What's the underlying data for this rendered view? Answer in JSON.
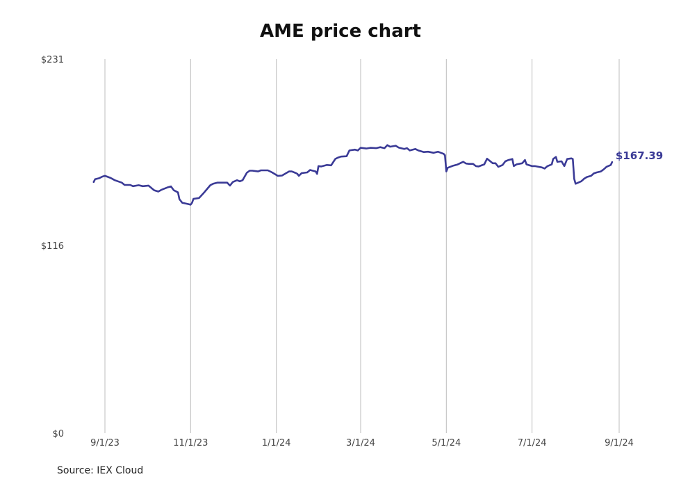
{
  "chart_data": {
    "type": "line",
    "title": "AME price chart",
    "source": "Source: IEX Cloud",
    "ylim": [
      0,
      231
    ],
    "y_ticks": [
      {
        "value": 0,
        "label": "$0"
      },
      {
        "value": 116,
        "label": "$116"
      },
      {
        "value": 231,
        "label": "$231"
      }
    ],
    "x_range": [
      "2023-08-24",
      "2024-09-01"
    ],
    "x_ticks": [
      {
        "date": "2023-09-01",
        "label": "9/1/23"
      },
      {
        "date": "2023-11-01",
        "label": "11/1/23"
      },
      {
        "date": "2024-01-01",
        "label": "1/1/24"
      },
      {
        "date": "2024-03-01",
        "label": "3/1/24"
      },
      {
        "date": "2024-05-01",
        "label": "5/1/24"
      },
      {
        "date": "2024-07-01",
        "label": "7/1/24"
      },
      {
        "date": "2024-09-01",
        "label": "9/1/24"
      }
    ],
    "grid": {
      "vertical": true,
      "horizontal": false
    },
    "series": [
      {
        "color": "#3a3a96",
        "last_value_label": "$167.39",
        "points": [
          [
            "2023-08-24",
            155.1
          ],
          [
            "2023-08-25",
            156.8
          ],
          [
            "2023-08-28",
            157.5
          ],
          [
            "2023-08-30",
            158.4
          ],
          [
            "2023-09-01",
            158.9
          ],
          [
            "2023-09-05",
            157.6
          ],
          [
            "2023-09-08",
            156.2
          ],
          [
            "2023-09-11",
            155.3
          ],
          [
            "2023-09-13",
            154.7
          ],
          [
            "2023-09-15",
            153.3
          ],
          [
            "2023-09-19",
            153.3
          ],
          [
            "2023-09-21",
            152.5
          ],
          [
            "2023-09-25",
            153.1
          ],
          [
            "2023-09-28",
            152.5
          ],
          [
            "2023-10-02",
            152.9
          ],
          [
            "2023-10-04",
            151.5
          ],
          [
            "2023-10-06",
            150.0
          ],
          [
            "2023-10-09",
            149.2
          ],
          [
            "2023-10-11",
            150.2
          ],
          [
            "2023-10-13",
            150.9
          ],
          [
            "2023-10-16",
            151.9
          ],
          [
            "2023-10-18",
            152.4
          ],
          [
            "2023-10-20",
            150.0
          ],
          [
            "2023-10-23",
            148.7
          ],
          [
            "2023-10-24",
            144.5
          ],
          [
            "2023-10-26",
            142.3
          ],
          [
            "2023-10-30",
            141.5
          ],
          [
            "2023-11-01",
            141.1
          ],
          [
            "2023-11-02",
            142.3
          ],
          [
            "2023-11-03",
            144.7
          ],
          [
            "2023-11-07",
            145.2
          ],
          [
            "2023-11-10",
            148.0
          ],
          [
            "2023-11-13",
            151.1
          ],
          [
            "2023-11-15",
            153.1
          ],
          [
            "2023-11-17",
            154.0
          ],
          [
            "2023-11-20",
            154.7
          ],
          [
            "2023-11-23",
            154.7
          ],
          [
            "2023-11-27",
            154.7
          ],
          [
            "2023-11-29",
            152.9
          ],
          [
            "2023-12-01",
            155.1
          ],
          [
            "2023-12-04",
            156.2
          ],
          [
            "2023-12-06",
            155.5
          ],
          [
            "2023-12-08",
            156.2
          ],
          [
            "2023-12-11",
            160.8
          ],
          [
            "2023-12-13",
            162.1
          ],
          [
            "2023-12-15",
            162.1
          ],
          [
            "2023-12-19",
            161.6
          ],
          [
            "2023-12-21",
            162.3
          ],
          [
            "2023-12-26",
            162.3
          ],
          [
            "2023-12-29",
            161.0
          ],
          [
            "2024-01-02",
            158.9
          ],
          [
            "2024-01-05",
            159.1
          ],
          [
            "2024-01-08",
            160.6
          ],
          [
            "2024-01-10",
            161.6
          ],
          [
            "2024-01-12",
            161.6
          ],
          [
            "2024-01-15",
            160.6
          ],
          [
            "2024-01-16",
            160.1
          ],
          [
            "2024-01-17",
            158.9
          ],
          [
            "2024-01-19",
            160.6
          ],
          [
            "2024-01-23",
            161.0
          ],
          [
            "2024-01-25",
            162.5
          ],
          [
            "2024-01-29",
            161.6
          ],
          [
            "2024-01-30",
            160.1
          ],
          [
            "2024-01-31",
            164.9
          ],
          [
            "2024-02-02",
            164.7
          ],
          [
            "2024-02-06",
            165.6
          ],
          [
            "2024-02-09",
            165.4
          ],
          [
            "2024-02-12",
            169.4
          ],
          [
            "2024-02-14",
            170.2
          ],
          [
            "2024-02-16",
            170.8
          ],
          [
            "2024-02-20",
            171.0
          ],
          [
            "2024-02-22",
            174.6
          ],
          [
            "2024-02-26",
            175.1
          ],
          [
            "2024-02-28",
            174.6
          ],
          [
            "2024-03-01",
            176.2
          ],
          [
            "2024-03-05",
            175.8
          ],
          [
            "2024-03-08",
            176.2
          ],
          [
            "2024-03-12",
            176.0
          ],
          [
            "2024-03-15",
            176.6
          ],
          [
            "2024-03-18",
            176.0
          ],
          [
            "2024-03-20",
            177.9
          ],
          [
            "2024-03-22",
            176.9
          ],
          [
            "2024-03-26",
            177.5
          ],
          [
            "2024-03-28",
            176.4
          ],
          [
            "2024-04-01",
            175.5
          ],
          [
            "2024-04-03",
            176.0
          ],
          [
            "2024-04-05",
            174.6
          ],
          [
            "2024-04-09",
            175.5
          ],
          [
            "2024-04-11",
            174.6
          ],
          [
            "2024-04-15",
            173.6
          ],
          [
            "2024-04-18",
            173.8
          ],
          [
            "2024-04-22",
            173.1
          ],
          [
            "2024-04-25",
            173.8
          ],
          [
            "2024-04-29",
            172.5
          ],
          [
            "2024-04-30",
            171.6
          ],
          [
            "2024-05-01",
            161.6
          ],
          [
            "2024-05-02",
            163.9
          ],
          [
            "2024-05-06",
            165.2
          ],
          [
            "2024-05-09",
            165.9
          ],
          [
            "2024-05-13",
            167.6
          ],
          [
            "2024-05-15",
            166.5
          ],
          [
            "2024-05-17",
            166.3
          ],
          [
            "2024-05-20",
            166.3
          ],
          [
            "2024-05-22",
            164.9
          ],
          [
            "2024-05-24",
            164.7
          ],
          [
            "2024-05-28",
            166.0
          ],
          [
            "2024-05-30",
            169.5
          ],
          [
            "2024-06-03",
            166.7
          ],
          [
            "2024-06-05",
            166.7
          ],
          [
            "2024-06-07",
            164.5
          ],
          [
            "2024-06-10",
            165.6
          ],
          [
            "2024-06-12",
            167.9
          ],
          [
            "2024-06-14",
            168.6
          ],
          [
            "2024-06-17",
            169.3
          ],
          [
            "2024-06-18",
            164.9
          ],
          [
            "2024-06-20",
            166.0
          ],
          [
            "2024-06-24",
            166.7
          ],
          [
            "2024-06-26",
            168.7
          ],
          [
            "2024-06-27",
            166.0
          ],
          [
            "2024-07-01",
            164.9
          ],
          [
            "2024-07-03",
            164.9
          ],
          [
            "2024-07-08",
            164.1
          ],
          [
            "2024-07-10",
            163.4
          ],
          [
            "2024-07-12",
            164.9
          ],
          [
            "2024-07-15",
            166.0
          ],
          [
            "2024-07-16",
            169.3
          ],
          [
            "2024-07-18",
            170.6
          ],
          [
            "2024-07-19",
            167.6
          ],
          [
            "2024-07-22",
            167.9
          ],
          [
            "2024-07-24",
            164.9
          ],
          [
            "2024-07-26",
            169.3
          ],
          [
            "2024-07-29",
            169.7
          ],
          [
            "2024-07-30",
            169.3
          ],
          [
            "2024-07-31",
            157.1
          ],
          [
            "2024-08-01",
            154.0
          ],
          [
            "2024-08-05",
            155.5
          ],
          [
            "2024-08-07",
            157.1
          ],
          [
            "2024-08-09",
            158.2
          ],
          [
            "2024-08-12",
            158.9
          ],
          [
            "2024-08-14",
            160.4
          ],
          [
            "2024-08-16",
            161.0
          ],
          [
            "2024-08-19",
            161.6
          ],
          [
            "2024-08-21",
            162.9
          ],
          [
            "2024-08-23",
            164.5
          ],
          [
            "2024-08-26",
            165.6
          ],
          [
            "2024-08-27",
            167.39
          ]
        ]
      }
    ]
  }
}
